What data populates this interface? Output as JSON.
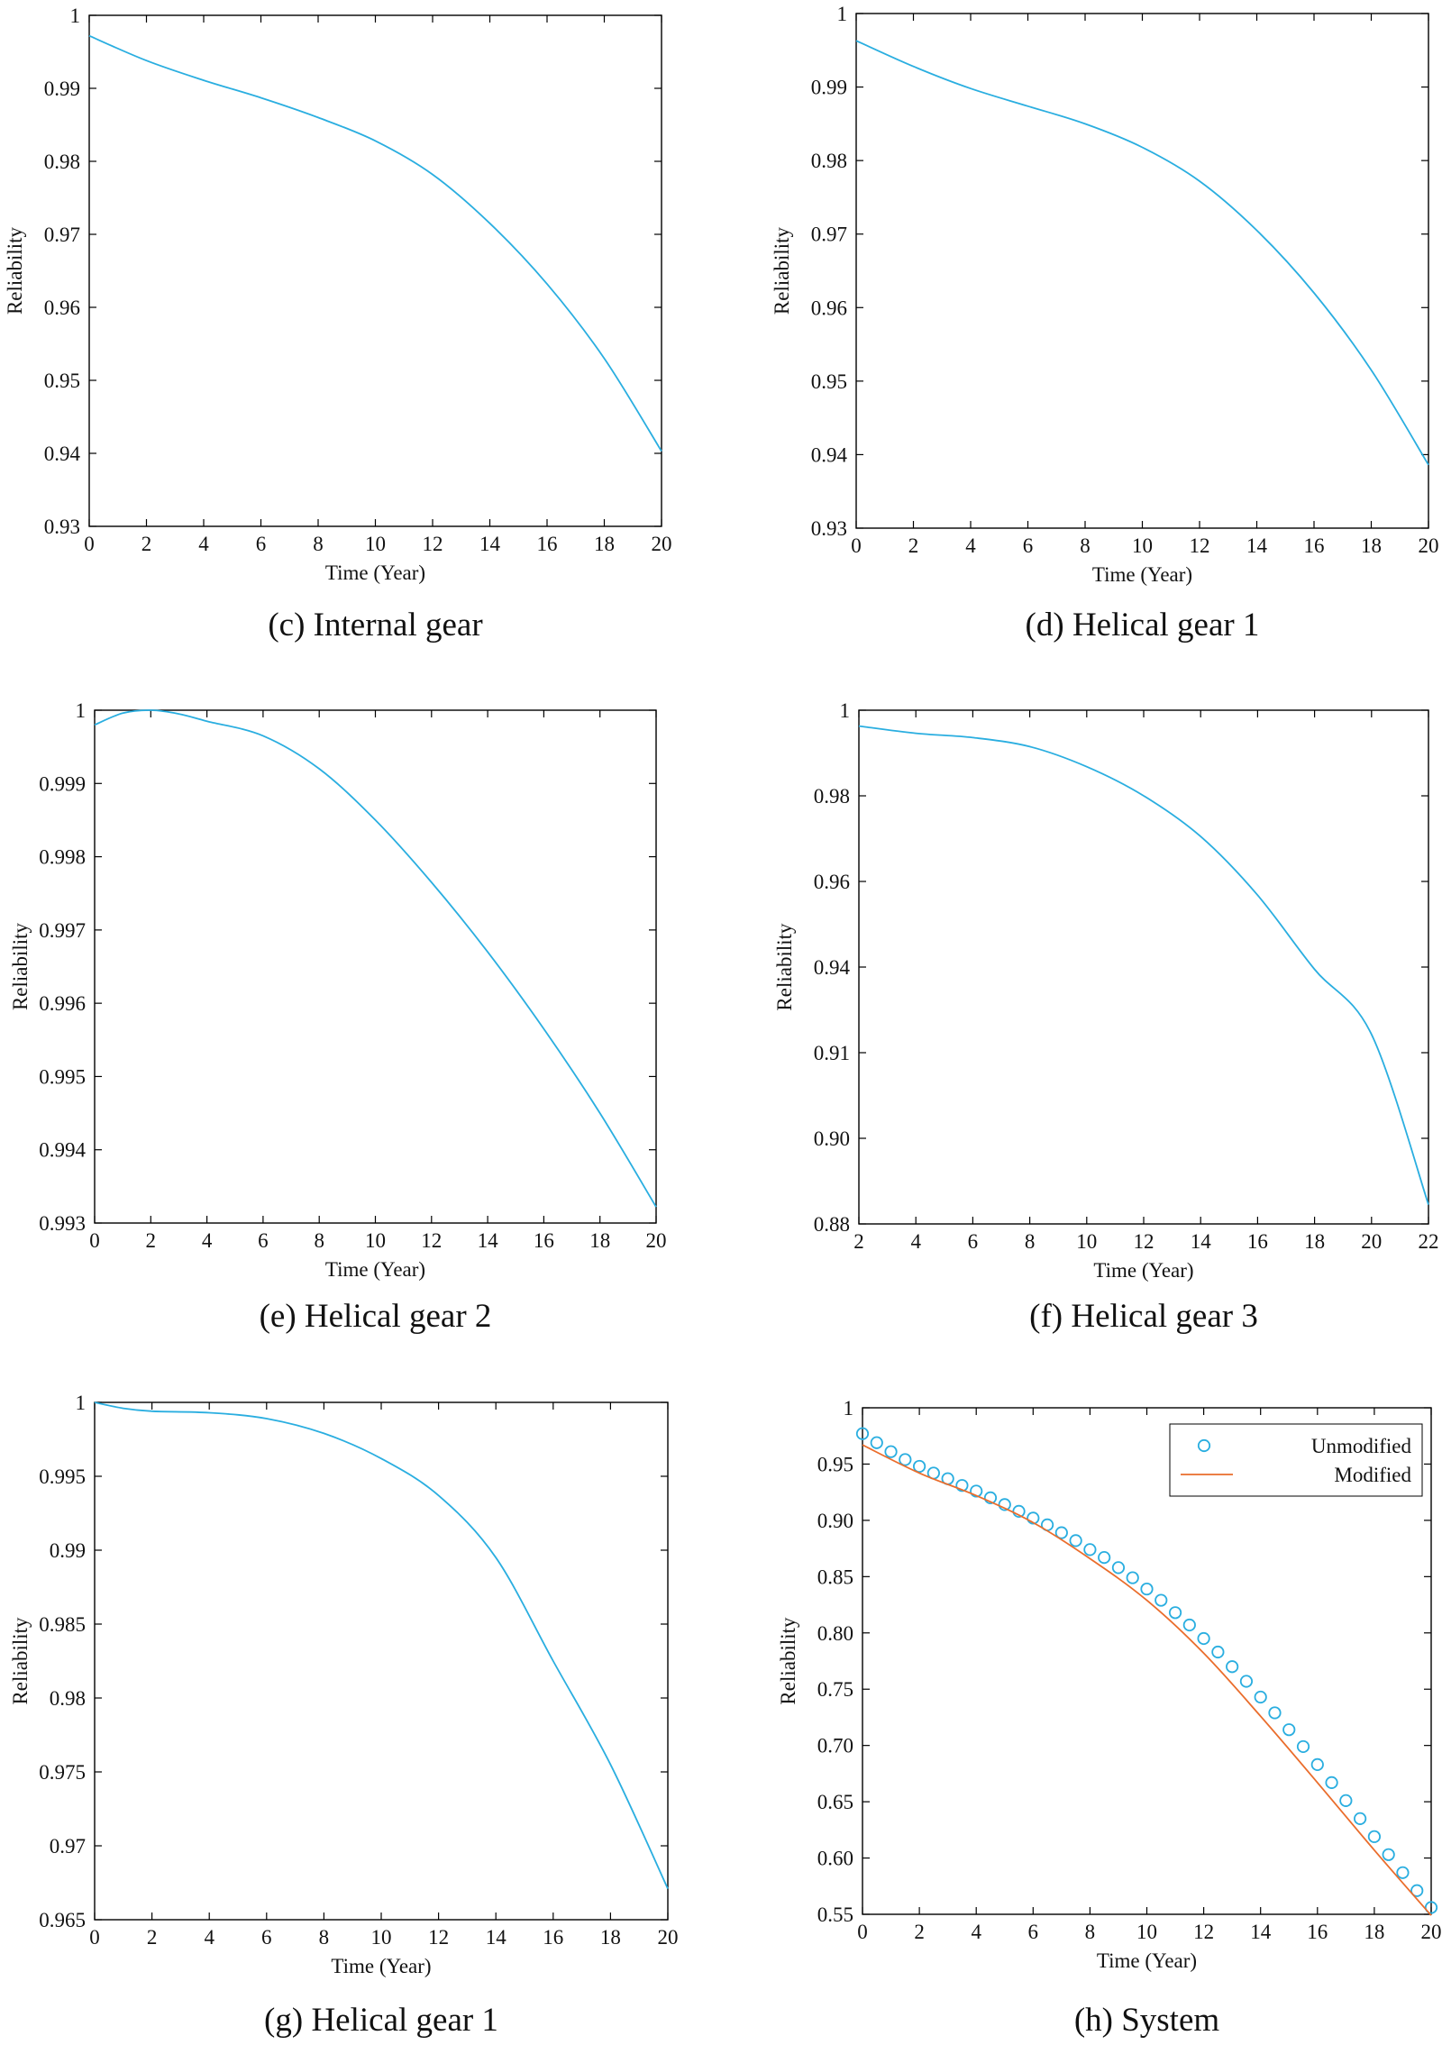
{
  "colors": {
    "blue": "#2aaee0",
    "orange": "#ea6d2c",
    "axis": "#000000"
  },
  "chart_data": [
    {
      "type": "line",
      "caption": "(c) Internal gear",
      "xlabel": "Time (Year)",
      "ylabel": "Reliability",
      "xlim": [
        0,
        20
      ],
      "ylim": [
        0.93,
        1
      ],
      "xticks": [
        0,
        2,
        4,
        6,
        8,
        10,
        12,
        14,
        16,
        18,
        20
      ],
      "yticks": [
        0.93,
        0.94,
        0.95,
        0.96,
        0.97,
        0.98,
        0.99,
        1
      ],
      "ytick_labels": [
        "0.93",
        "0.94",
        "0.95",
        "0.96",
        "0.97",
        "0.98",
        "0.99",
        "1"
      ],
      "series": [
        {
          "name": "Internal gear",
          "style": "line",
          "color": "#2aaee0",
          "x": [
            0,
            2,
            4,
            6,
            8,
            10,
            12,
            14,
            16,
            18,
            20
          ],
          "y": [
            0.9972,
            0.9938,
            0.9911,
            0.9887,
            0.986,
            0.9828,
            0.9782,
            0.9715,
            0.9632,
            0.953,
            0.9403
          ]
        }
      ]
    },
    {
      "type": "line",
      "caption": "(d) Helical gear 1",
      "xlabel": "Time (Year)",
      "ylabel": "Reliability",
      "xlim": [
        0,
        20
      ],
      "ylim": [
        0.93,
        1
      ],
      "xticks": [
        0,
        2,
        4,
        6,
        8,
        10,
        12,
        14,
        16,
        18,
        20
      ],
      "yticks": [
        0.93,
        0.94,
        0.95,
        0.96,
        0.97,
        0.98,
        0.99,
        1
      ],
      "ytick_labels": [
        "0.93",
        "0.94",
        "0.95",
        "0.96",
        "0.97",
        "0.98",
        "0.99",
        "1"
      ],
      "series": [
        {
          "name": "Helical gear 1",
          "style": "line",
          "color": "#2aaee0",
          "x": [
            0,
            2,
            4,
            6,
            8,
            10,
            12,
            14,
            16,
            18,
            20
          ],
          "y": [
            0.9963,
            0.9928,
            0.9898,
            0.9874,
            0.985,
            0.9818,
            0.9772,
            0.9705,
            0.962,
            0.9515,
            0.9386
          ]
        }
      ]
    },
    {
      "type": "line",
      "caption": "(e) Helical gear  2",
      "xlabel": "Time (Year)",
      "ylabel": "Reliability",
      "xlim": [
        0,
        20
      ],
      "ylim": [
        0.993,
        1
      ],
      "xticks": [
        0,
        2,
        4,
        6,
        8,
        10,
        12,
        14,
        16,
        18,
        20
      ],
      "yticks": [
        0.993,
        0.994,
        0.995,
        0.996,
        0.997,
        0.998,
        0.999,
        1
      ],
      "ytick_labels": [
        "0.993",
        "0.994",
        "0.995",
        "0.996",
        "0.997",
        "0.998",
        "0.999",
        "1"
      ],
      "series": [
        {
          "name": "Helical gear 2",
          "style": "line",
          "color": "#2aaee0",
          "x": [
            0,
            1,
            2,
            3,
            4,
            6,
            8,
            10,
            12,
            14,
            16,
            18,
            20
          ],
          "y": [
            0.9998,
            0.99996,
            1.0,
            0.99995,
            0.99985,
            0.99965,
            0.9992,
            0.9985,
            0.99765,
            0.9967,
            0.99565,
            0.9945,
            0.99322
          ]
        }
      ]
    },
    {
      "type": "line",
      "caption": "(f) Helical gear  3",
      "xlabel": "Time (Year)",
      "ylabel": "Reliability",
      "xlim": [
        2,
        22
      ],
      "xticks": [
        2,
        4,
        6,
        8,
        10,
        12,
        14,
        16,
        18,
        20,
        22
      ],
      "yticks": [
        0.88,
        0.9,
        0.91,
        0.94,
        0.96,
        0.98,
        1
      ],
      "ytick_labels": [
        "0.88",
        "0.90",
        "0.91",
        "0.94",
        "0.96",
        "0.98",
        "1"
      ],
      "ytick_scale": "evenly spaced labels",
      "series": [
        {
          "name": "Helical gear 3",
          "style": "line",
          "color": "#2aaee0",
          "x": [
            2,
            4,
            6,
            8,
            10,
            12,
            14,
            16,
            18,
            20,
            22
          ],
          "y": [
            0.9963,
            0.9946,
            0.9936,
            0.9915,
            0.9868,
            0.98,
            0.9705,
            0.9568,
            0.9392,
            0.9164,
            0.8845
          ]
        }
      ]
    },
    {
      "type": "line",
      "caption": "(g) Helical gear 1",
      "xlabel": "Time (Year)",
      "ylabel": "Reliability",
      "xlim": [
        0,
        20
      ],
      "ylim": [
        0.965,
        1
      ],
      "xticks": [
        0,
        2,
        4,
        6,
        8,
        10,
        12,
        14,
        16,
        18,
        20
      ],
      "yticks": [
        0.965,
        0.97,
        0.975,
        0.98,
        0.985,
        0.99,
        0.995,
        1
      ],
      "ytick_labels": [
        "0.965",
        "0.97",
        "0.975",
        "0.98",
        "0.985",
        "0.99",
        "0.995",
        "1"
      ],
      "series": [
        {
          "name": "Helical gear 1",
          "style": "line",
          "color": "#2aaee0",
          "x": [
            0,
            1,
            2,
            4,
            6,
            8,
            10,
            12,
            14,
            16,
            18,
            20
          ],
          "y": [
            1.0,
            0.9996,
            0.9994,
            0.9993,
            0.9989,
            0.9979,
            0.9962,
            0.9937,
            0.9895,
            0.9825,
            0.9755,
            0.9671
          ]
        }
      ]
    },
    {
      "type": "line",
      "caption": "(h) System",
      "xlabel": "Time (Year)",
      "ylabel": "Reliability",
      "xlim": [
        0,
        20
      ],
      "ylim": [
        0.55,
        1
      ],
      "xticks": [
        0,
        2,
        4,
        6,
        8,
        10,
        12,
        14,
        16,
        18,
        20
      ],
      "yticks": [
        0.55,
        0.6,
        0.65,
        0.7,
        0.75,
        0.8,
        0.85,
        0.9,
        0.95,
        1
      ],
      "ytick_labels": [
        "0.55",
        "0.60",
        "0.65",
        "0.70",
        "0.75",
        "0.80",
        "0.85",
        "0.90",
        "0.95",
        "1"
      ],
      "legend_position": "top-right",
      "series": [
        {
          "name": "Unmodified",
          "style": "markers",
          "color": "#2aaee0",
          "x": [
            0,
            0.5,
            1,
            1.5,
            2,
            2.5,
            3,
            3.5,
            4,
            4.5,
            5,
            5.5,
            6,
            6.5,
            7,
            7.5,
            8,
            8.5,
            9,
            9.5,
            10,
            10.5,
            11,
            11.5,
            12,
            12.5,
            13,
            13.5,
            14,
            14.5,
            15,
            15.5,
            16,
            16.5,
            17,
            17.5,
            18,
            18.5,
            19,
            19.5,
            20
          ],
          "y": [
            0.977,
            0.969,
            0.961,
            0.954,
            0.948,
            0.942,
            0.937,
            0.931,
            0.926,
            0.92,
            0.914,
            0.908,
            0.902,
            0.896,
            0.889,
            0.882,
            0.874,
            0.867,
            0.858,
            0.849,
            0.839,
            0.829,
            0.818,
            0.807,
            0.795,
            0.783,
            0.77,
            0.757,
            0.743,
            0.729,
            0.714,
            0.699,
            0.683,
            0.667,
            0.651,
            0.635,
            0.619,
            0.603,
            0.587,
            0.571,
            0.556
          ]
        },
        {
          "name": "Modified",
          "style": "line",
          "color": "#ea6d2c",
          "x": [
            0,
            2,
            4,
            6,
            8,
            10,
            12,
            14,
            16,
            18,
            20
          ],
          "y": [
            0.967,
            0.942,
            0.922,
            0.898,
            0.866,
            0.829,
            0.782,
            0.726,
            0.667,
            0.607,
            0.549
          ]
        }
      ]
    }
  ]
}
